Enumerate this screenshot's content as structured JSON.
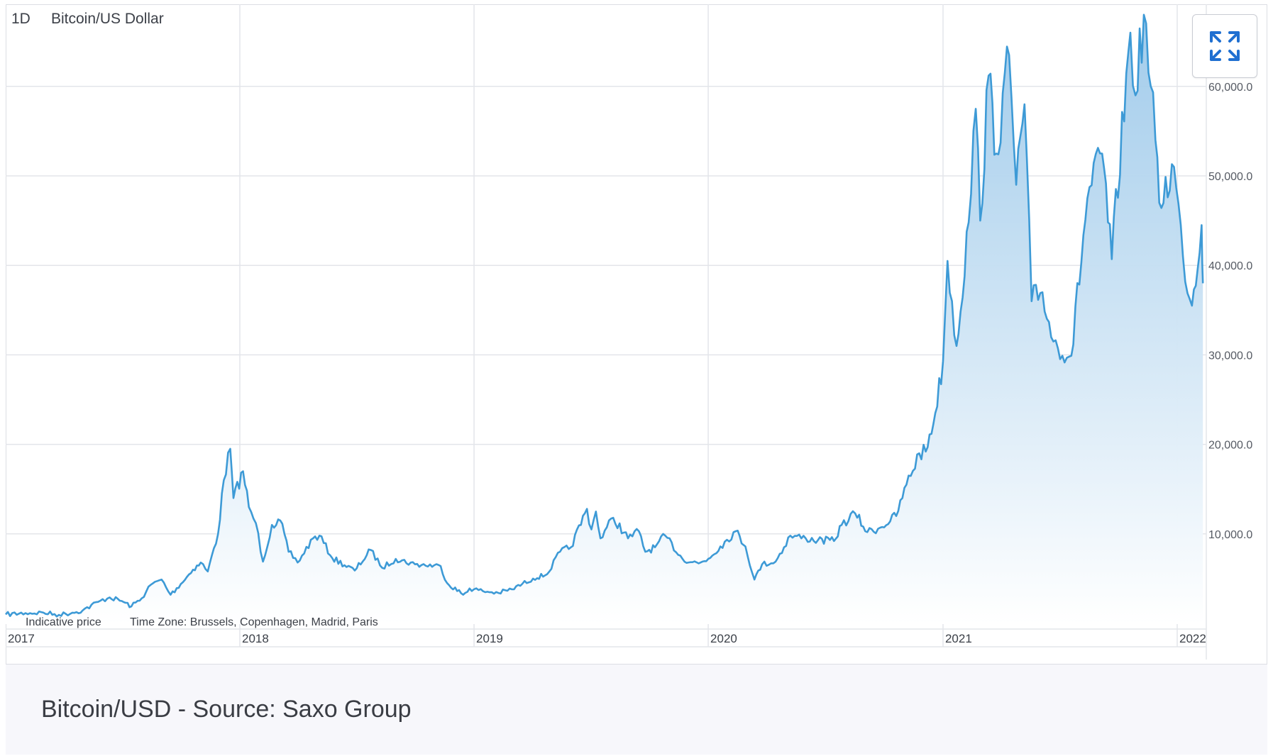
{
  "header": {
    "interval": "1D",
    "instrument": "Bitcoin/US Dollar"
  },
  "footer_note": {
    "indicative": "Indicative price",
    "timezone": "Time Zone: Brussels, Copenhagen, Madrid, Paris"
  },
  "caption": "Bitcoin/USD - Source: Saxo Group",
  "expand_icon": "expand-arrows-icon",
  "colors": {
    "line": "#3d9ad6",
    "fill_top": "#9dc9ea",
    "fill_bottom": "#ffffff",
    "grid": "#e3e5ea",
    "accent_icon": "#1f6fd1"
  },
  "chart_data": {
    "type": "area",
    "title": "",
    "xlabel": "",
    "ylabel": "",
    "ylim": [
      0,
      66000
    ],
    "xlim": [
      "2017-01-01",
      "2022-02-10"
    ],
    "y_axis_position": "right",
    "grid": true,
    "y_ticks": [
      {
        "value": 10000,
        "label": "10,000.0"
      },
      {
        "value": 20000,
        "label": "20,000.0"
      },
      {
        "value": 30000,
        "label": "30,000.0"
      },
      {
        "value": 40000,
        "label": "40,000.0"
      },
      {
        "value": 50000,
        "label": "50,000.0"
      },
      {
        "value": 60000,
        "label": "60,000.0"
      }
    ],
    "x_ticks": [
      {
        "date": "2017-01-01",
        "label": "2017"
      },
      {
        "date": "2018-01-01",
        "label": "2018"
      },
      {
        "date": "2019-01-01",
        "label": "2019"
      },
      {
        "date": "2020-01-01",
        "label": "2020"
      },
      {
        "date": "2021-01-01",
        "label": "2021"
      },
      {
        "date": "2022-01-01",
        "label": "2022"
      }
    ],
    "series": [
      {
        "values": [
          [
            "2017-01-01",
            1000
          ],
          [
            "2017-02-01",
            1150
          ],
          [
            "2017-03-01",
            1200
          ],
          [
            "2017-03-25",
            950
          ],
          [
            "2017-04-15",
            1200
          ],
          [
            "2017-05-01",
            1450
          ],
          [
            "2017-05-25",
            2400
          ],
          [
            "2017-06-12",
            2900
          ],
          [
            "2017-07-01",
            2500
          ],
          [
            "2017-07-16",
            1900
          ],
          [
            "2017-08-01",
            2800
          ],
          [
            "2017-08-15",
            4300
          ],
          [
            "2017-09-01",
            4900
          ],
          [
            "2017-09-15",
            3200
          ],
          [
            "2017-10-01",
            4400
          ],
          [
            "2017-10-20",
            6000
          ],
          [
            "2017-11-01",
            6800
          ],
          [
            "2017-11-12",
            5800
          ],
          [
            "2017-11-28",
            10000
          ],
          [
            "2017-12-07",
            16000
          ],
          [
            "2017-12-17",
            19500
          ],
          [
            "2017-12-22",
            14000
          ],
          [
            "2018-01-06",
            17000
          ],
          [
            "2018-01-15",
            13000
          ],
          [
            "2018-01-26",
            11200
          ],
          [
            "2018-02-06",
            6900
          ],
          [
            "2018-02-20",
            11000
          ],
          [
            "2018-03-05",
            11500
          ],
          [
            "2018-03-18",
            8000
          ],
          [
            "2018-04-01",
            6800
          ],
          [
            "2018-04-25",
            9500
          ],
          [
            "2018-05-05",
            9800
          ],
          [
            "2018-05-25",
            7300
          ],
          [
            "2018-06-29",
            5900
          ],
          [
            "2018-07-24",
            8200
          ],
          [
            "2018-08-11",
            6200
          ],
          [
            "2018-09-01",
            7200
          ],
          [
            "2018-10-01",
            6600
          ],
          [
            "2018-11-10",
            6400
          ],
          [
            "2018-11-20",
            4500
          ],
          [
            "2018-12-15",
            3200
          ],
          [
            "2018-12-25",
            3900
          ],
          [
            "2019-01-15",
            3600
          ],
          [
            "2019-02-08",
            3400
          ],
          [
            "2019-03-01",
            3800
          ],
          [
            "2019-04-03",
            5000
          ],
          [
            "2019-04-25",
            5500
          ],
          [
            "2019-05-15",
            8000
          ],
          [
            "2019-06-01",
            8500
          ],
          [
            "2019-06-26",
            12800
          ],
          [
            "2019-07-03",
            10500
          ],
          [
            "2019-07-10",
            12500
          ],
          [
            "2019-07-17",
            9500
          ],
          [
            "2019-08-06",
            11800
          ],
          [
            "2019-08-29",
            9500
          ],
          [
            "2019-09-15",
            10300
          ],
          [
            "2019-09-25",
            8000
          ],
          [
            "2019-10-10",
            8500
          ],
          [
            "2019-10-26",
            9800
          ],
          [
            "2019-11-22",
            7200
          ],
          [
            "2019-12-17",
            6700
          ],
          [
            "2020-01-01",
            7200
          ],
          [
            "2020-01-20",
            8600
          ],
          [
            "2020-02-13",
            10300
          ],
          [
            "2020-02-28",
            8600
          ],
          [
            "2020-03-13",
            4900
          ],
          [
            "2020-03-25",
            6600
          ],
          [
            "2020-04-15",
            6900
          ],
          [
            "2020-05-08",
            9800
          ],
          [
            "2020-06-01",
            9500
          ],
          [
            "2020-06-20",
            9300
          ],
          [
            "2020-07-15",
            9200
          ],
          [
            "2020-07-27",
            11000
          ],
          [
            "2020-08-17",
            12300
          ],
          [
            "2020-09-05",
            10200
          ],
          [
            "2020-09-25",
            10700
          ],
          [
            "2020-10-20",
            12000
          ],
          [
            "2020-11-05",
            15500
          ],
          [
            "2020-11-25",
            19000
          ],
          [
            "2020-12-05",
            19200
          ],
          [
            "2020-12-20",
            23500
          ],
          [
            "2021-01-01",
            29300
          ],
          [
            "2021-01-08",
            40500
          ],
          [
            "2021-01-22",
            31000
          ],
          [
            "2021-02-10",
            44800
          ],
          [
            "2021-02-21",
            57500
          ],
          [
            "2021-02-28",
            45000
          ],
          [
            "2021-03-13",
            61200
          ],
          [
            "2021-03-25",
            52500
          ],
          [
            "2021-04-14",
            63500
          ],
          [
            "2021-04-25",
            49000
          ],
          [
            "2021-05-08",
            58000
          ],
          [
            "2021-05-19",
            36000
          ],
          [
            "2021-06-05",
            37000
          ],
          [
            "2021-06-22",
            31500
          ],
          [
            "2021-07-20",
            29900
          ],
          [
            "2021-08-14",
            47500
          ],
          [
            "2021-09-06",
            52500
          ],
          [
            "2021-09-21",
            40700
          ],
          [
            "2021-10-20",
            66000
          ],
          [
            "2021-10-28",
            59000
          ],
          [
            "2021-11-10",
            68000
          ],
          [
            "2021-11-28",
            54000
          ],
          [
            "2021-12-04",
            47000
          ],
          [
            "2021-12-27",
            51000
          ],
          [
            "2022-01-10",
            41000
          ],
          [
            "2022-01-24",
            35500
          ],
          [
            "2022-02-08",
            44500
          ],
          [
            "2022-02-10",
            38000
          ]
        ]
      }
    ]
  }
}
